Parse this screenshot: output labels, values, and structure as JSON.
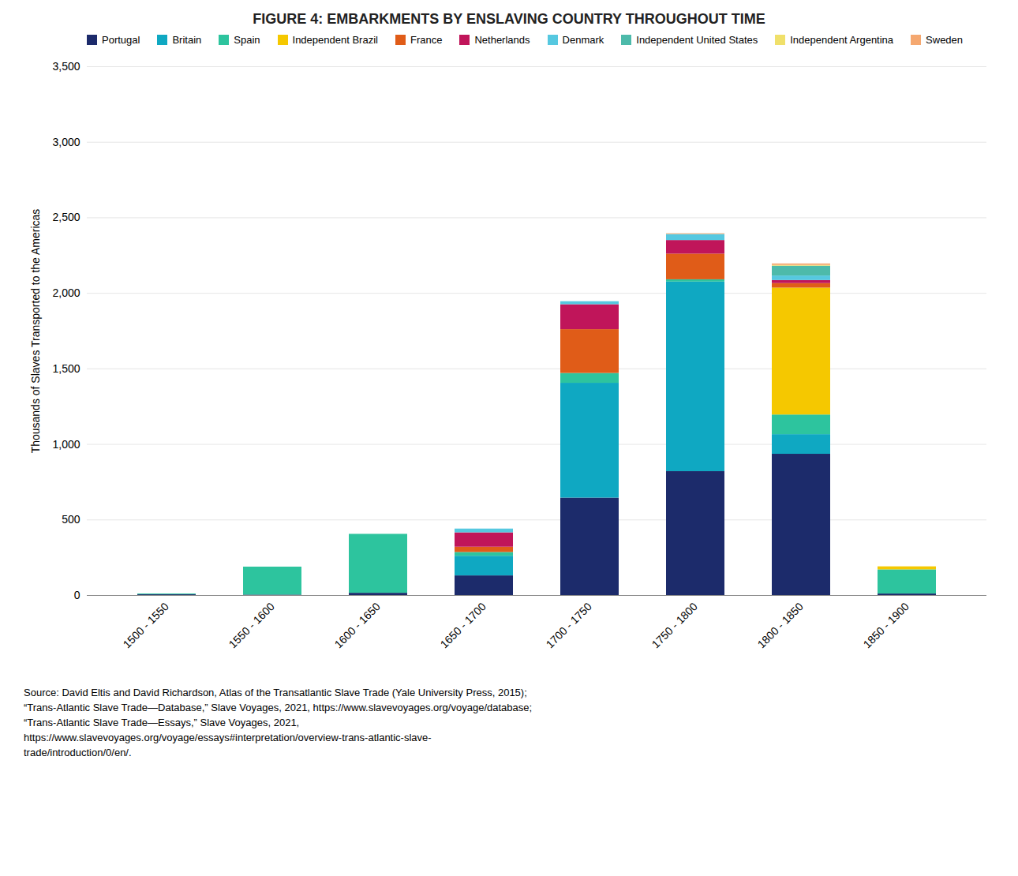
{
  "chart_data": {
    "type": "bar",
    "stacked": true,
    "title": "FIGURE 4: EMBARKMENTS BY ENSLAVING COUNTRY THROUGHOUT TIME",
    "ylabel": "Thousands of Slaves Transported to the Americas",
    "categories": [
      "1500 - 1550",
      "1550 - 1600",
      "1600 - 1650",
      "1650 - 1700",
      "1700 - 1750",
      "1750 - 1800",
      "1800 - 1850",
      "1850 - 1900"
    ],
    "series": [
      {
        "name": "Portugal",
        "color": "#1c2b6b",
        "values": [
          5,
          3,
          15,
          130,
          645,
          820,
          935,
          10
        ]
      },
      {
        "name": "Britain",
        "color": "#0fa8c2",
        "values": [
          0,
          0,
          0,
          130,
          760,
          1255,
          130,
          0
        ]
      },
      {
        "name": "Spain",
        "color": "#2dc49e",
        "values": [
          5,
          185,
          390,
          25,
          65,
          15,
          130,
          160
        ]
      },
      {
        "name": "Independent Brazil",
        "color": "#f5c800",
        "values": [
          0,
          0,
          0,
          0,
          0,
          0,
          840,
          20
        ]
      },
      {
        "name": "France",
        "color": "#e05c18",
        "values": [
          0,
          0,
          0,
          35,
          290,
          170,
          30,
          0
        ]
      },
      {
        "name": "Netherlands",
        "color": "#c0155a",
        "values": [
          0,
          0,
          0,
          95,
          165,
          90,
          20,
          0
        ]
      },
      {
        "name": "Denmark",
        "color": "#56c8e0",
        "values": [
          0,
          0,
          0,
          25,
          20,
          40,
          30,
          0
        ]
      },
      {
        "name": "Independent United States",
        "color": "#4dbaaa",
        "values": [
          0,
          0,
          0,
          0,
          0,
          0,
          65,
          0
        ]
      },
      {
        "name": "Independent Argentina",
        "color": "#f0e06a",
        "values": [
          0,
          0,
          0,
          0,
          0,
          0,
          5,
          0
        ]
      },
      {
        "name": "Sweden",
        "color": "#f5a870",
        "values": [
          0,
          0,
          0,
          0,
          0,
          5,
          10,
          0
        ]
      }
    ],
    "ylim": [
      0,
      3500
    ],
    "yticks": [
      0,
      500,
      {
        "value": 1000,
        "label": "1,000"
      },
      {
        "value": 1500,
        "label": "1,500"
      },
      {
        "value": 2000,
        "label": "2,000"
      },
      {
        "value": 2500,
        "label": "2,500"
      },
      {
        "value": 3000,
        "label": "3,000"
      },
      {
        "value": 3500,
        "label": "3,500"
      }
    ],
    "grid": true,
    "legend": "upper left",
    "annotations": [
      "Source: David Eltis and David Richardson, Atlas of the Transatlantic Slave Trade (Yale University Press, 2015);",
      "“Trans-Atlantic Slave Trade—Database,” Slave Voyages, 2021, https://www.slavevoyages.org/voyage/database;",
      "“Trans-Atlantic Slave Trade—Essays,” Slave Voyages, 2021,",
      "https://www.slavevoyages.org/voyage/essays#interpretation/overview-trans-atlantic-slave-",
      "trade/introduction/0/en/."
    ]
  }
}
